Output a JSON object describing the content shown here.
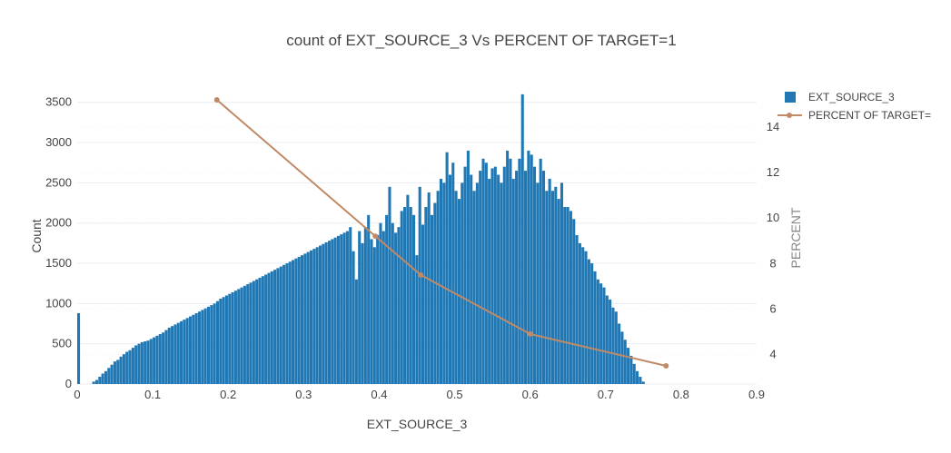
{
  "chart_data": {
    "type": "bar",
    "title": "count of EXT_SOURCE_3 Vs PERCENT OF TARGET=1",
    "xlabel": "EXT_SOURCE_3",
    "ylabel": "Count",
    "y2label": "PERCENT",
    "xlim": [
      0,
      0.9
    ],
    "ylim": [
      0,
      3700
    ],
    "y2lim": [
      2.7,
      15.8
    ],
    "xticks": [
      "0",
      "0.1",
      "0.2",
      "0.3",
      "0.4",
      "0.5",
      "0.6",
      "0.7",
      "0.8",
      "0.9"
    ],
    "yticks": [
      "0",
      "500",
      "1000",
      "1500",
      "2000",
      "2500",
      "3000",
      "3500"
    ],
    "y2ticks": [
      "4",
      "6",
      "8",
      "10",
      "12",
      "14"
    ],
    "legend_position": "top-right",
    "series": [
      {
        "name": "EXT_SOURCE_3",
        "type": "histogram",
        "color": "#1f77b4",
        "bin_width": 0.004,
        "bin_start": 0.0,
        "values": [
          880,
          0,
          0,
          0,
          0,
          30,
          50,
          90,
          130,
          160,
          200,
          240,
          280,
          300,
          340,
          370,
          400,
          420,
          450,
          480,
          500,
          520,
          530,
          540,
          560,
          580,
          600,
          620,
          640,
          670,
          700,
          720,
          740,
          760,
          780,
          800,
          820,
          840,
          860,
          880,
          900,
          920,
          940,
          960,
          980,
          1000,
          1030,
          1060,
          1080,
          1100,
          1120,
          1140,
          1160,
          1180,
          1200,
          1220,
          1240,
          1260,
          1280,
          1300,
          1320,
          1340,
          1360,
          1380,
          1400,
          1420,
          1440,
          1460,
          1480,
          1500,
          1520,
          1540,
          1560,
          1580,
          1600,
          1620,
          1640,
          1660,
          1680,
          1700,
          1720,
          1740,
          1760,
          1780,
          1800,
          1820,
          1840,
          1860,
          1880,
          1900,
          1950,
          1650,
          1300,
          1900,
          1750,
          1950,
          2100,
          1800,
          1700,
          1850,
          2000,
          1900,
          2100,
          2450,
          2000,
          1880,
          1950,
          2150,
          2200,
          2350,
          2200,
          2100,
          1600,
          2450,
          1980,
          2200,
          2380,
          2100,
          2250,
          2400,
          2550,
          2500,
          2880,
          2600,
          2750,
          2400,
          2300,
          2500,
          2700,
          2900,
          2600,
          2400,
          2500,
          2650,
          2800,
          2750,
          2550,
          2680,
          2700,
          2600,
          2500,
          2700,
          2900,
          2800,
          2550,
          2650,
          2800,
          3600,
          2650,
          2900,
          2850,
          2700,
          2500,
          2800,
          2650,
          2400,
          2550,
          2400,
          2450,
          2300,
          2500,
          2200,
          2200,
          2150,
          2050,
          1850,
          1750,
          1700,
          1650,
          1550,
          1500,
          1400,
          1300,
          1250,
          1200,
          1100,
          1050,
          950,
          900,
          750,
          650,
          550,
          450,
          350,
          250,
          160,
          90,
          30
        ]
      },
      {
        "name": "PERCENT OF TARGET=",
        "type": "line",
        "color": "#c08a66",
        "axis": "right",
        "x": [
          0.185,
          0.395,
          0.455,
          0.6,
          0.78
        ],
        "y": [
          15.2,
          9.2,
          7.5,
          4.9,
          3.5
        ]
      }
    ]
  }
}
